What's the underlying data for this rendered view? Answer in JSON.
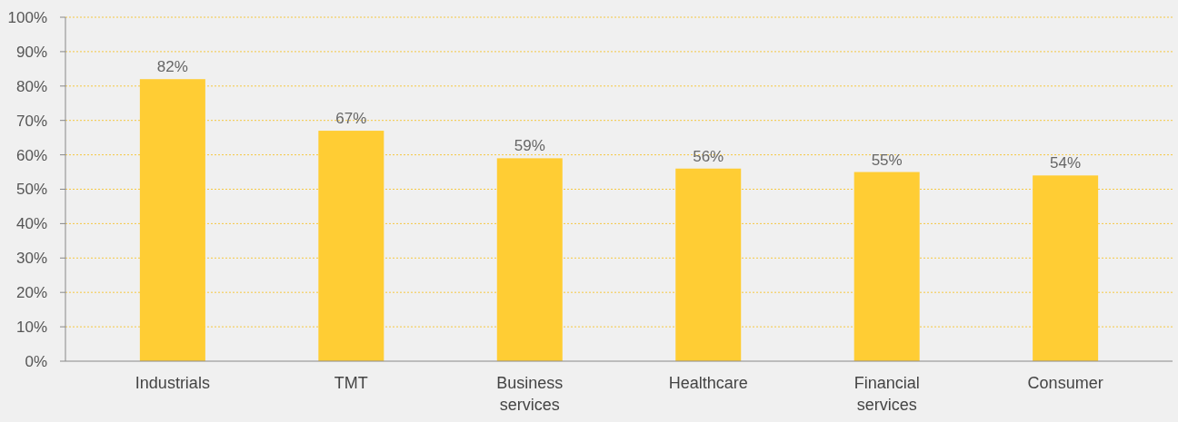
{
  "chart_data": {
    "type": "bar",
    "categories": [
      "Industrials",
      "TMT",
      "Business services",
      "Healthcare",
      "Financial services",
      "Consumer"
    ],
    "values": [
      82,
      67,
      59,
      56,
      55,
      54
    ],
    "color": "#ffcd34",
    "ylim": [
      0,
      100
    ],
    "yticks": [
      {
        "value": 0,
        "label": "0%"
      },
      {
        "value": 10,
        "label": "10%"
      },
      {
        "value": 20,
        "label": "20%"
      },
      {
        "value": 30,
        "label": "30%"
      },
      {
        "value": 40,
        "label": "40%"
      },
      {
        "value": 50,
        "label": "50%"
      },
      {
        "value": 60,
        "label": "60%"
      },
      {
        "value": 70,
        "label": "70%"
      },
      {
        "value": 80,
        "label": "80%"
      },
      {
        "value": 90,
        "label": "90%"
      },
      {
        "value": 100,
        "label": "100%"
      }
    ],
    "value_labels": [
      "82%",
      "67%",
      "59%",
      "56%",
      "55%",
      "54%"
    ],
    "grid": "y"
  }
}
